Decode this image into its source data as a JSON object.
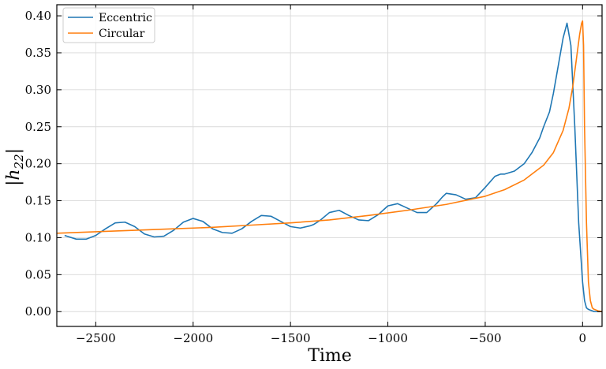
{
  "chart_data": {
    "type": "line",
    "xlabel": "Time",
    "ylabel": "|h22|",
    "ylabel_parts": {
      "prefix": "|h",
      "subscript": "22",
      "suffix": "|"
    },
    "xlim": [
      -2700,
      100
    ],
    "ylim": [
      -0.02,
      0.415
    ],
    "x_ticks": [
      -2500,
      -2000,
      -1500,
      -1000,
      -500,
      0
    ],
    "x_tick_labels": [
      "−2500",
      "−2000",
      "−1500",
      "−1000",
      "−500",
      "0"
    ],
    "y_ticks": [
      0.0,
      0.05,
      0.1,
      0.15,
      0.2,
      0.25,
      0.3,
      0.35,
      0.4
    ],
    "y_tick_labels": [
      "0.00",
      "0.05",
      "0.10",
      "0.15",
      "0.20",
      "0.25",
      "0.30",
      "0.35",
      "0.40"
    ],
    "grid": true,
    "legend_position": "top-left",
    "series": [
      {
        "name": "Eccentric",
        "color": "#1f77b4",
        "x": [
          -2660,
          -2600,
          -2550,
          -2500,
          -2450,
          -2400,
          -2350,
          -2300,
          -2250,
          -2200,
          -2150,
          -2100,
          -2050,
          -2000,
          -1950,
          -1900,
          -1850,
          -1800,
          -1750,
          -1700,
          -1650,
          -1600,
          -1550,
          -1500,
          -1450,
          -1400,
          -1380,
          -1350,
          -1300,
          -1250,
          -1200,
          -1150,
          -1100,
          -1050,
          -1000,
          -950,
          -900,
          -850,
          -800,
          -750,
          -720,
          -700,
          -650,
          -600,
          -550,
          -500,
          -450,
          -420,
          -400,
          -350,
          -300,
          -260,
          -220,
          -200,
          -170,
          -150,
          -120,
          -100,
          -80,
          -60,
          -40,
          -20,
          0,
          10,
          20,
          30,
          40,
          50,
          60,
          80,
          100
        ],
        "y": [
          0.103,
          0.098,
          0.098,
          0.103,
          0.112,
          0.12,
          0.121,
          0.115,
          0.105,
          0.101,
          0.102,
          0.11,
          0.121,
          0.126,
          0.122,
          0.112,
          0.107,
          0.106,
          0.112,
          0.122,
          0.13,
          0.129,
          0.122,
          0.115,
          0.113,
          0.116,
          0.118,
          0.123,
          0.134,
          0.137,
          0.13,
          0.124,
          0.123,
          0.131,
          0.143,
          0.146,
          0.14,
          0.134,
          0.134,
          0.146,
          0.155,
          0.16,
          0.158,
          0.152,
          0.154,
          0.168,
          0.183,
          0.186,
          0.186,
          0.19,
          0.2,
          0.215,
          0.235,
          0.25,
          0.27,
          0.295,
          0.34,
          0.37,
          0.39,
          0.36,
          0.25,
          0.12,
          0.04,
          0.015,
          0.005,
          0.003,
          0.002,
          0.001,
          0.0,
          0.0,
          0.0
        ]
      },
      {
        "name": "Circular",
        "color": "#ff7f0e",
        "x": [
          -2700,
          -2500,
          -2300,
          -2100,
          -1900,
          -1700,
          -1500,
          -1300,
          -1100,
          -900,
          -700,
          -500,
          -400,
          -300,
          -200,
          -150,
          -100,
          -70,
          -50,
          -30,
          -15,
          -5,
          0,
          5,
          10,
          20,
          30,
          40,
          50,
          60,
          80,
          100
        ],
        "y": [
          0.106,
          0.108,
          0.11,
          0.112,
          0.114,
          0.117,
          0.12,
          0.124,
          0.13,
          0.137,
          0.145,
          0.156,
          0.165,
          0.178,
          0.198,
          0.215,
          0.245,
          0.275,
          0.305,
          0.345,
          0.375,
          0.39,
          0.393,
          0.36,
          0.25,
          0.12,
          0.04,
          0.015,
          0.005,
          0.003,
          0.001,
          0.0
        ]
      }
    ]
  }
}
